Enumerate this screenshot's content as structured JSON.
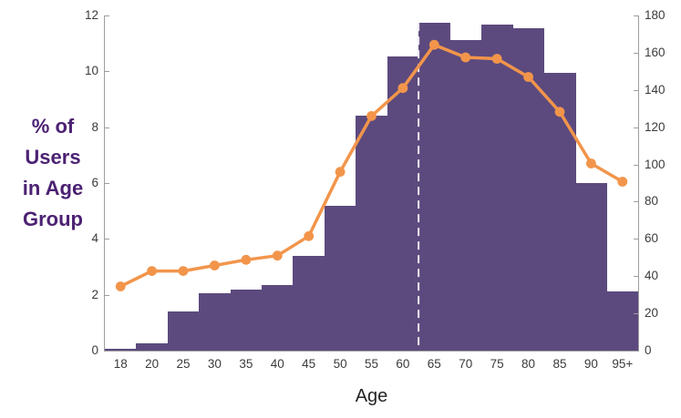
{
  "chart_data": {
    "type": "bar+line",
    "categories": [
      "18",
      "20",
      "25",
      "30",
      "35",
      "40",
      "45",
      "50",
      "55",
      "60",
      "65",
      "70",
      "75",
      "80",
      "85",
      "90",
      "95+"
    ],
    "series": [
      {
        "name": "users-per-age-group-count",
        "kind": "bar",
        "axis": "right",
        "color": "#5C4A7E",
        "values": [
          1,
          4,
          21,
          31,
          33,
          35,
          51,
          78,
          126,
          158,
          176,
          167,
          175,
          173,
          149,
          90,
          32
        ]
      },
      {
        "name": "pct-of-users-in-age-group",
        "kind": "line",
        "axis": "left",
        "color": "#F2954B",
        "values": [
          2.3,
          2.85,
          2.85,
          3.05,
          3.25,
          3.4,
          4.1,
          6.4,
          8.4,
          9.4,
          10.95,
          10.5,
          10.45,
          9.8,
          8.55,
          6.7,
          6.05
        ]
      }
    ],
    "xlabel": "Age",
    "ylabel_left": "% of Users in Age Group",
    "ylabel_left_lines": [
      "% of",
      "Users",
      "in Age",
      "Group"
    ],
    "axis_left": {
      "min": 0,
      "max": 12,
      "step": 2,
      "tick_labels": [
        "0",
        "2",
        "4",
        "6",
        "8",
        "10",
        "12"
      ]
    },
    "axis_right": {
      "min": 0,
      "max": 180,
      "step": 20,
      "tick_labels": [
        "0",
        "20",
        "40",
        "60",
        "80",
        "100",
        "120",
        "140",
        "160",
        "180"
      ]
    },
    "reference_line": {
      "position_between": [
        "60",
        "65"
      ],
      "orientation": "vertical",
      "style": "dashed",
      "color": "#EDE8F3"
    },
    "grid": "off",
    "legend": "none",
    "colors": {
      "bar_fill": "#5C4A7E",
      "line_stroke": "#F2954B",
      "y_title_text": "#4C2173",
      "axis_line": "#9E9E9E",
      "tick_text": "#3B3B3B",
      "x_title_text": "#262626"
    }
  }
}
